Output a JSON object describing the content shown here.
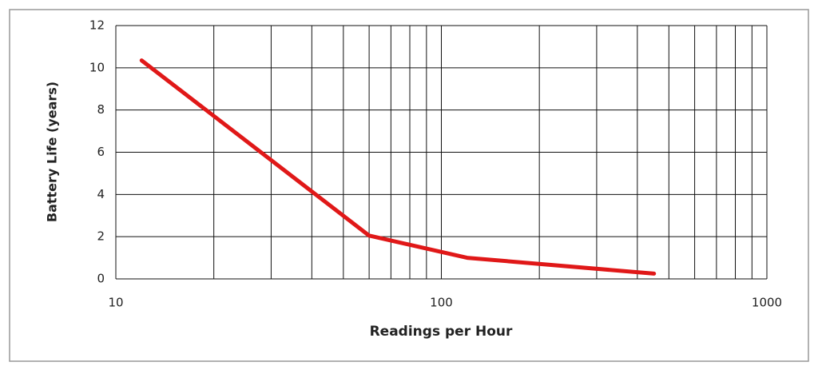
{
  "chart_data": {
    "type": "line",
    "xlabel": "Readings per Hour",
    "ylabel": "Battery  Life (years)",
    "x": [
      12,
      60,
      120,
      450
    ],
    "series": [
      {
        "name": "Battery Life",
        "color": "#e01818",
        "values": [
          10.35,
          2.05,
          1.0,
          0.25
        ]
      }
    ],
    "xscale": "log",
    "xlim": [
      10,
      1000
    ],
    "xticks": [
      10,
      100,
      1000
    ],
    "x_minor_ticks": [
      20,
      30,
      40,
      50,
      60,
      70,
      80,
      90,
      200,
      300,
      400,
      500,
      600,
      700,
      800,
      900
    ],
    "ylim": [
      0,
      12
    ],
    "yticks": [
      0,
      2,
      4,
      6,
      8,
      10,
      12
    ],
    "grid": true,
    "legend": false
  }
}
